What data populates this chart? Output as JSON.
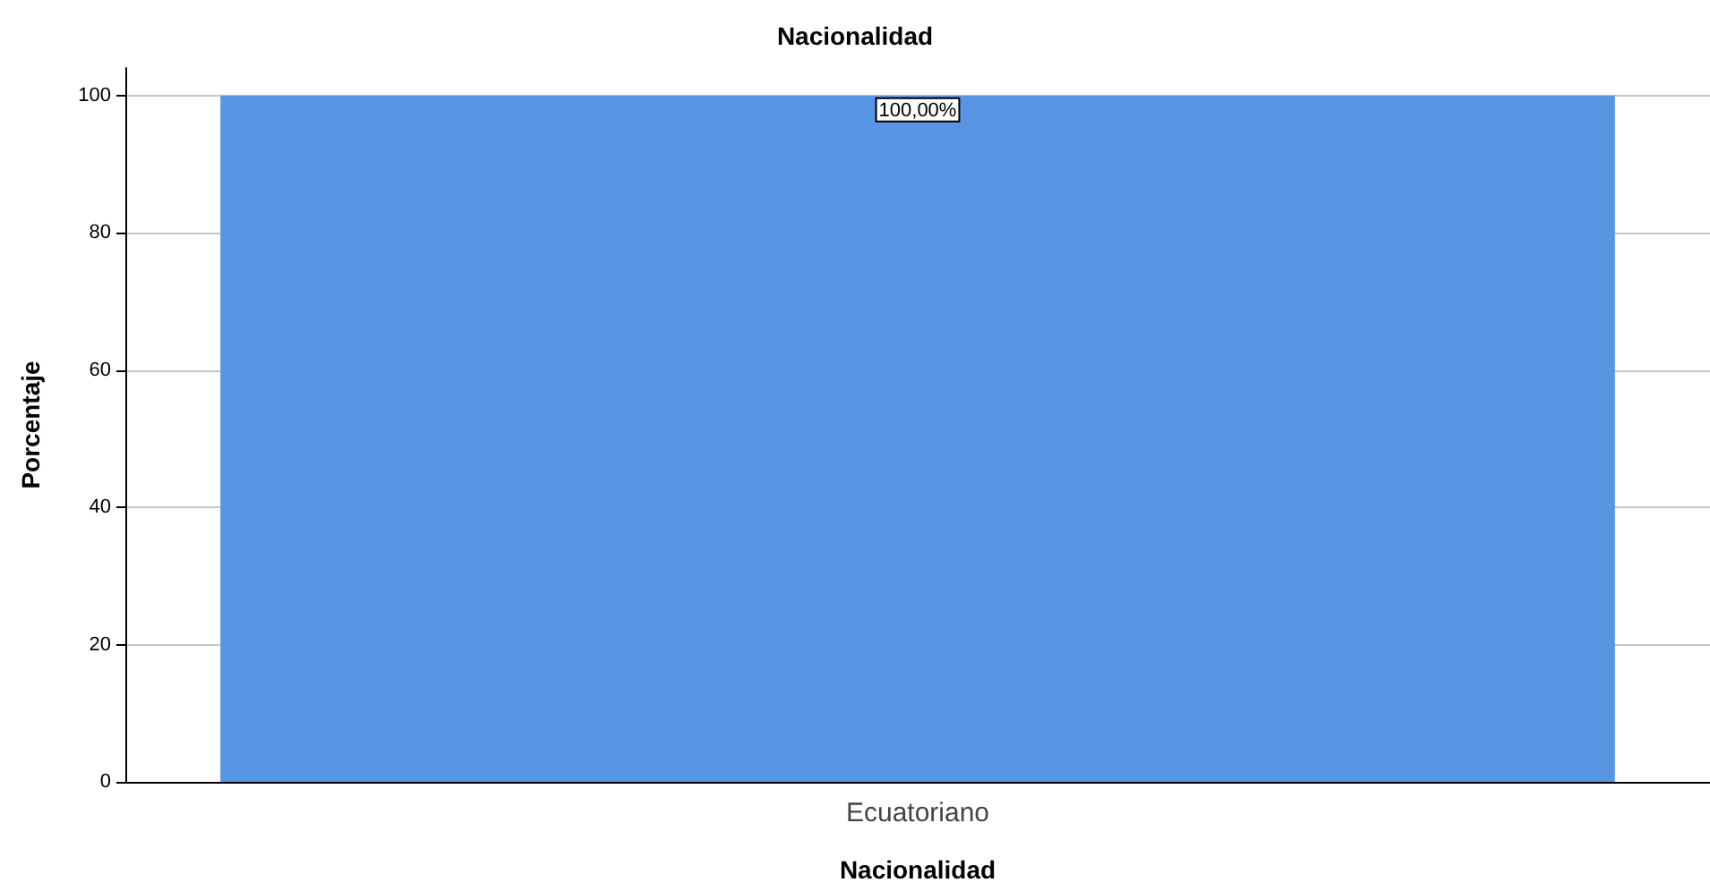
{
  "chart_data": {
    "type": "bar",
    "title": "Nacionalidad",
    "xlabel": "Nacionalidad",
    "ylabel": "Porcentaje",
    "categories": [
      "Ecuatoriano"
    ],
    "values": [
      100
    ],
    "color": "#5896e4",
    "value_labels": [
      "100,00%"
    ],
    "ylim": [
      0,
      104
    ],
    "yticks": [
      0,
      20,
      40,
      60,
      80,
      100
    ],
    "grid": "y"
  }
}
